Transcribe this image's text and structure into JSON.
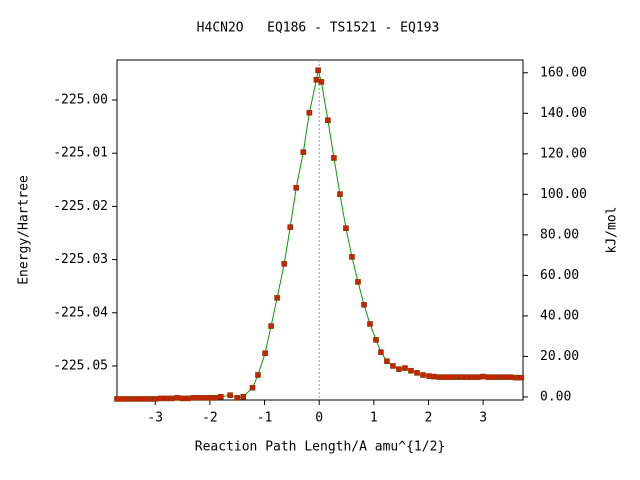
{
  "chart_data": {
    "type": "line",
    "title": "H4CN2O   EQ186 - TS1521 - EQ193",
    "xlabel": "Reaction Path Length/A amu^{1/2}",
    "ylabel": "Energy/Hartree",
    "y2label": "kJ/mol",
    "x": [
      -3.7,
      -3.6,
      -3.5,
      -3.4,
      -3.3,
      -3.2,
      -3.1,
      -3.0,
      -2.9,
      -2.8,
      -2.7,
      -2.6,
      -2.5,
      -2.4,
      -2.3,
      -2.2,
      -2.1,
      -2.0,
      -1.9,
      -1.8,
      -1.63,
      -1.5,
      -1.39,
      -1.22,
      -1.12,
      -0.99,
      -0.88,
      -0.77,
      -0.64,
      -0.53,
      -0.42,
      -0.29,
      -0.18,
      -0.05,
      -0.02,
      0.04,
      0.16,
      0.27,
      0.38,
      0.49,
      0.6,
      0.71,
      0.82,
      0.93,
      1.04,
      1.13,
      1.24,
      1.35,
      1.46,
      1.57,
      1.68,
      1.79,
      1.9,
      2.01,
      2.1,
      2.2,
      2.3,
      2.4,
      2.5,
      2.6,
      2.7,
      2.8,
      2.9,
      3.0,
      3.1,
      3.2,
      3.3,
      3.4,
      3.5,
      3.6,
      3.7
    ],
    "series": [
      {
        "color": "#00a000",
        "marker_color": "#cc2200",
        "values": [
          -225.0562,
          -225.0562,
          -225.0562,
          -225.0562,
          -225.0562,
          -225.0562,
          -225.0562,
          -225.0562,
          -225.0561,
          -225.0561,
          -225.0561,
          -225.056,
          -225.0561,
          -225.0561,
          -225.056,
          -225.056,
          -225.056,
          -225.056,
          -225.056,
          -225.0558,
          -225.0555,
          -225.056,
          -225.0558,
          -225.0541,
          -225.0517,
          -225.0476,
          -225.0425,
          -225.0372,
          -225.0308,
          -225.0239,
          -225.0165,
          -225.0098,
          -225.0024,
          -224.9962,
          -224.9944,
          -224.9966,
          -225.0038,
          -225.0109,
          -225.0177,
          -225.0241,
          -225.0295,
          -225.0342,
          -225.0385,
          -225.0421,
          -225.0451,
          -225.0474,
          -225.0491,
          -225.05,
          -225.0506,
          -225.0504,
          -225.0509,
          -225.0513,
          -225.0517,
          -225.0519,
          -225.052,
          -225.0521,
          -225.0521,
          -225.0521,
          -225.0521,
          -225.0521,
          -225.0521,
          -225.0521,
          -225.0521,
          -225.052,
          -225.0521,
          -225.0521,
          -225.0521,
          -225.0521,
          -225.0521,
          -225.0522,
          -225.0522
        ]
      }
    ],
    "xlim": [
      -3.7,
      3.73
    ],
    "xticks": [
      -3,
      -2,
      -1,
      0,
      1,
      2,
      3
    ],
    "ylim": [
      -225.0564,
      -224.99248
    ],
    "yticks": [
      {
        "value": -225.0,
        "label": "-225.00"
      },
      {
        "value": -225.01,
        "label": "-225.01"
      },
      {
        "value": -225.02,
        "label": "-225.02"
      },
      {
        "value": -225.03,
        "label": "-225.03"
      },
      {
        "value": -225.04,
        "label": "-225.04"
      },
      {
        "value": -225.05,
        "label": "-225.05"
      }
    ],
    "y2lim": [
      -1.5,
      166.3
    ],
    "y2ticks": [
      {
        "value": 0,
        "label": "0.00"
      },
      {
        "value": 20,
        "label": "20.00"
      },
      {
        "value": 40,
        "label": "40.00"
      },
      {
        "value": 60,
        "label": "60.00"
      },
      {
        "value": 80,
        "label": "80.00"
      },
      {
        "value": 100,
        "label": "100.00"
      },
      {
        "value": 120,
        "label": "120.00"
      },
      {
        "value": 140,
        "label": "140.00"
      },
      {
        "value": 160,
        "label": "160.00"
      }
    ],
    "reference_line_x": 0
  }
}
